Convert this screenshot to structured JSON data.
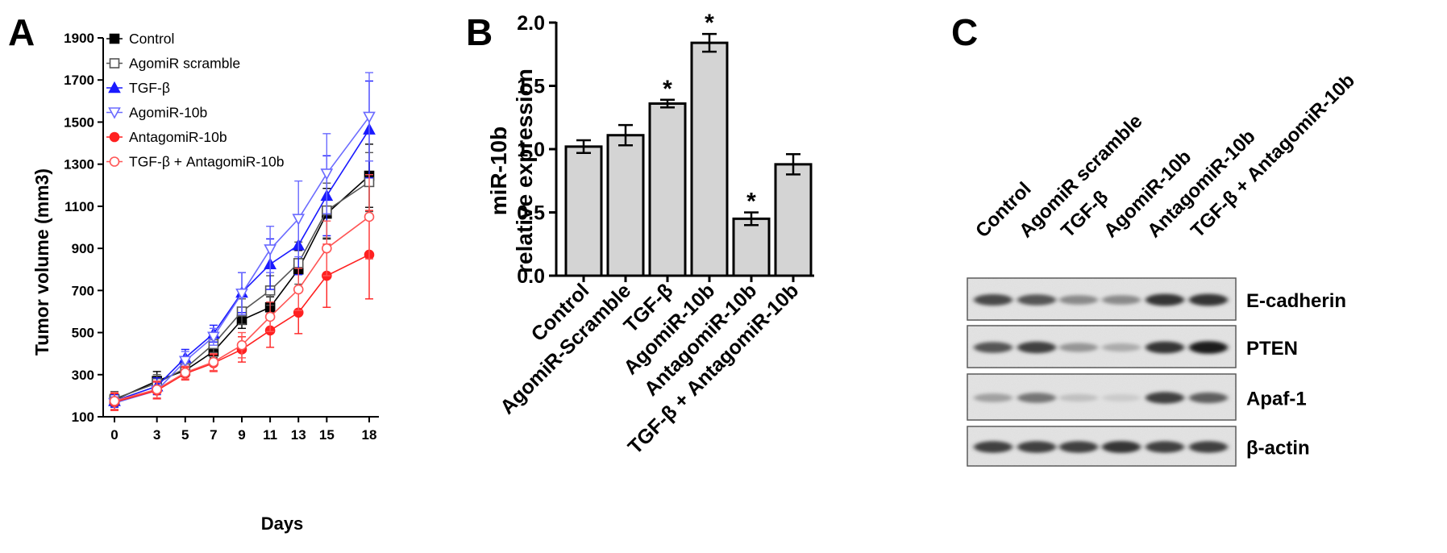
{
  "chart_data": [
    {
      "panel": "A",
      "type": "line",
      "xlabel": "Days",
      "ylabel": "Tumor  volume (mm3)",
      "x": [
        0,
        3,
        5,
        7,
        9,
        11,
        13,
        15,
        18
      ],
      "xticks": [
        "0",
        "3",
        "5",
        "7",
        "9",
        "11",
        "13",
        "15",
        "18"
      ],
      "yticks": [
        100,
        300,
        500,
        700,
        900,
        1100,
        1300,
        1500,
        1700,
        1900
      ],
      "ylim": [
        100,
        1900
      ],
      "legend_placement": "top-left",
      "series": [
        {
          "name": "Control",
          "color": "#000000",
          "marker": "square-filled",
          "values": [
            180,
            270,
            320,
            410,
            560,
            620,
            800,
            1065,
            1245
          ],
          "errors": [
            30,
            45,
            30,
            30,
            40,
            50,
            90,
            120,
            150
          ]
        },
        {
          "name": "AgomiR scramble",
          "color": "#555555",
          "marker": "square-open",
          "values": [
            185,
            260,
            330,
            445,
            600,
            700,
            830,
            1080,
            1215
          ],
          "errors": [
            35,
            40,
            35,
            40,
            60,
            70,
            100,
            130,
            140
          ]
        },
        {
          "name": "TGF-β",
          "color": "#1a1aff",
          "marker": "triangle-up-filled",
          "values": [
            175,
            245,
            380,
            495,
            690,
            825,
            915,
            1150,
            1465
          ],
          "errors": [
            30,
            40,
            40,
            40,
            95,
            120,
            140,
            190,
            230
          ]
        },
        {
          "name": "AgomiR-10b",
          "color": "#6b6bff",
          "marker": "triangle-down-open",
          "values": [
            165,
            225,
            365,
            480,
            685,
            895,
            1040,
            1255,
            1525
          ],
          "errors": [
            30,
            40,
            45,
            40,
            100,
            110,
            180,
            190,
            210
          ]
        },
        {
          "name": "AntagomiR-10b",
          "color": "#ff2020",
          "marker": "circle-filled",
          "values": [
            170,
            225,
            305,
            355,
            420,
            510,
            595,
            770,
            870
          ],
          "errors": [
            40,
            40,
            30,
            40,
            60,
            80,
            100,
            150,
            210
          ]
        },
        {
          "name": "TGF-β + AntagomiR-10b",
          "color": "#ff5555",
          "marker": "circle-open",
          "values": [
            175,
            230,
            310,
            360,
            440,
            575,
            705,
            900,
            1050
          ],
          "errors": [
            40,
            40,
            30,
            40,
            60,
            70,
            100,
            130,
            200
          ]
        }
      ]
    },
    {
      "panel": "B",
      "type": "bar",
      "ylabel_line1": "miR-10b",
      "ylabel_line2": "relative expression",
      "categories": [
        "Control",
        "AgomiR-Scramble",
        "TGF-β",
        "AgomiR-10b",
        "AntagomiR-10b",
        "TGF-β + AntagomiR-10b"
      ],
      "values": [
        1.02,
        1.11,
        1.36,
        1.84,
        0.45,
        0.88
      ],
      "errors": [
        0.05,
        0.08,
        0.03,
        0.07,
        0.05,
        0.08
      ],
      "significant": [
        false,
        false,
        true,
        true,
        true,
        false
      ],
      "significance_mark": "*",
      "ylim": [
        0,
        2.0
      ],
      "yticks": [
        "0.0",
        "0.5",
        "1.0",
        "1.5",
        "2.0"
      ],
      "bar_color": "#d4d4d4"
    }
  ],
  "panels": {
    "a": {
      "letter": "A"
    },
    "b": {
      "letter": "B"
    },
    "c": {
      "letter": "C",
      "lanes": [
        "Control",
        "AgomiR scramble",
        "TGF-β",
        "AgomiR-10b",
        "AntagomiR-10b",
        "TGF-β + AntagomiR-10b"
      ],
      "blots": [
        {
          "label": "E-cadherin",
          "intensity": [
            0.75,
            0.7,
            0.45,
            0.45,
            0.85,
            0.85
          ]
        },
        {
          "label": "PTEN",
          "intensity": [
            0.7,
            0.8,
            0.4,
            0.3,
            0.85,
            0.95
          ]
        },
        {
          "label": "Apaf-1",
          "intensity": [
            0.35,
            0.55,
            0.2,
            0.15,
            0.8,
            0.65
          ]
        },
        {
          "label": "β-actin",
          "intensity": [
            0.8,
            0.8,
            0.8,
            0.85,
            0.8,
            0.8
          ]
        }
      ]
    }
  }
}
